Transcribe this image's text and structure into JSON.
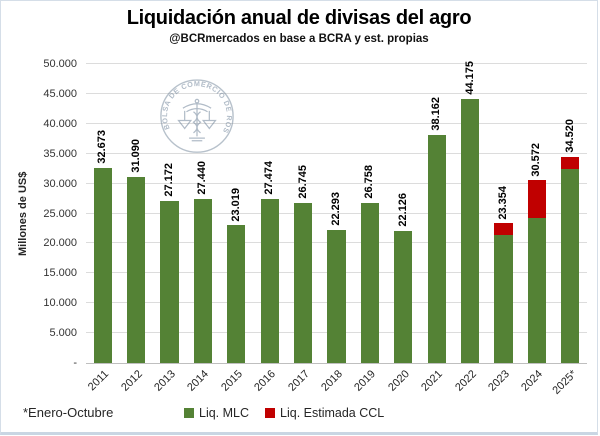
{
  "header": {
    "title": "Liquidación anual de divisas del agro",
    "subtitle": "@BCRmercados en base a BCRA y est. propias"
  },
  "watermark": {
    "text": "BOLSA DE COMERCIO DE ROSARIO"
  },
  "footnote": "*Enero-Octubre",
  "chart_data": {
    "type": "bar",
    "stacked": true,
    "title": "Liquidación anual de divisas del agro",
    "subtitle": "@BCRmercados en base a BCRA y est. propias",
    "ylabel": "Millones de US$",
    "xlabel": "",
    "ylim": [
      0,
      50000
    ],
    "ytick_step": 5000,
    "ytick_labels": [
      "50.000",
      "45.000",
      "40.000",
      "35.000",
      "30.000",
      "25.000",
      "20.000",
      "15.000",
      "10.000",
      "5.000",
      "-"
    ],
    "grid": true,
    "legend_position": "bottom",
    "categories": [
      "2011",
      "2012",
      "2013",
      "2014",
      "2015",
      "2016",
      "2017",
      "2018",
      "2019",
      "2020",
      "2021",
      "2022",
      "2023",
      "2024",
      "2025*"
    ],
    "series": [
      {
        "name": "Liq. MLC",
        "color": "#548235",
        "values": [
          32673,
          31090,
          27172,
          27440,
          23019,
          27474,
          26745,
          22293,
          26758,
          22126,
          38162,
          44175,
          21400,
          24200,
          32440
        ]
      },
      {
        "name": "Liq. Estimada CCL",
        "color": "#C00000",
        "values": [
          0,
          0,
          0,
          0,
          0,
          0,
          0,
          0,
          0,
          0,
          0,
          0,
          1954,
          6372,
          2080
        ]
      }
    ],
    "totals": [
      32673,
      31090,
      27172,
      27440,
      23019,
      27474,
      26745,
      22293,
      26758,
      22126,
      38162,
      44175,
      23354,
      30572,
      34520
    ],
    "total_labels": [
      "32.673",
      "31.090",
      "27.172",
      "27.440",
      "23.019",
      "27.474",
      "26.745",
      "22.293",
      "26.758",
      "22.126",
      "38.162",
      "44.175",
      "23.354",
      "30.572",
      "34.520"
    ],
    "legend": [
      {
        "name": "Liq. MLC",
        "color": "#548235"
      },
      {
        "name": "Liq. Estimada CCL",
        "color": "#C00000"
      }
    ]
  }
}
